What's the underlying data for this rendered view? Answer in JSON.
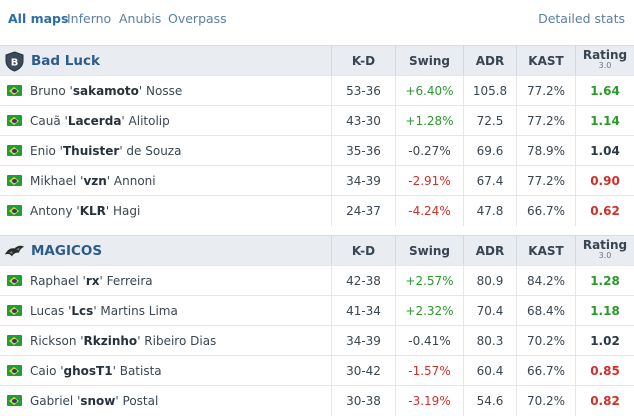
{
  "tabs": {
    "items": [
      {
        "label": "All maps",
        "active": true
      },
      {
        "label": "Inferno",
        "active": false
      },
      {
        "label": "Anubis",
        "active": false
      },
      {
        "label": "Overpass",
        "active": false
      }
    ],
    "detailed_stats": "Detailed stats"
  },
  "columns": {
    "kd": "K-D",
    "swing": "Swing",
    "adr": "ADR",
    "kast": "KAST",
    "rating": "Rating",
    "rating_version": "3.0"
  },
  "teams": [
    {
      "name": "Bad Luck",
      "logo_icon": "shield-b-icon",
      "players": [
        {
          "first": "Bruno '",
          "nick": "sakamoto",
          "last": "' Nosse",
          "kd": "53-36",
          "swing": "+6.40%",
          "adr": "105.8",
          "kast": "77.2%",
          "rating": "1.64"
        },
        {
          "first": "Cauã '",
          "nick": "Lacerda",
          "last": "' Alitolip",
          "kd": "43-30",
          "swing": "+1.28%",
          "adr": "72.5",
          "kast": "77.2%",
          "rating": "1.14"
        },
        {
          "first": "Enio '",
          "nick": "Thuister",
          "last": "' de Souza",
          "kd": "35-36",
          "swing": "-0.27%",
          "adr": "69.6",
          "kast": "78.9%",
          "rating": "1.04"
        },
        {
          "first": "Mikhael '",
          "nick": "vzn",
          "last": "' Annoni",
          "kd": "34-39",
          "swing": "-2.91%",
          "adr": "67.4",
          "kast": "77.2%",
          "rating": "0.90"
        },
        {
          "first": "Antony '",
          "nick": "KLR",
          "last": "' Hagi",
          "kd": "24-37",
          "swing": "-4.24%",
          "adr": "47.8",
          "kast": "66.7%",
          "rating": "0.62"
        }
      ]
    },
    {
      "name": "MAGICOS",
      "logo_icon": "magicos-logo-icon",
      "players": [
        {
          "first": "Raphael '",
          "nick": "rx",
          "last": "' Ferreira",
          "kd": "42-38",
          "swing": "+2.57%",
          "adr": "80.9",
          "kast": "84.2%",
          "rating": "1.28"
        },
        {
          "first": "Lucas '",
          "nick": "Lcs",
          "last": "' Martins Lima",
          "kd": "41-34",
          "swing": "+2.32%",
          "adr": "70.4",
          "kast": "68.4%",
          "rating": "1.18"
        },
        {
          "first": "Rickson '",
          "nick": "Rkzinho",
          "last": "' Ribeiro Dias",
          "kd": "34-39",
          "swing": "-0.41%",
          "adr": "80.3",
          "kast": "70.2%",
          "rating": "1.02"
        },
        {
          "first": "Caio '",
          "nick": "ghosT1",
          "last": "' Batista",
          "kd": "30-42",
          "swing": "-1.57%",
          "adr": "60.4",
          "kast": "66.7%",
          "rating": "0.85"
        },
        {
          "first": "Gabriel '",
          "nick": "snow",
          "last": "' Postal",
          "kd": "30-38",
          "swing": "-3.19%",
          "adr": "54.6",
          "kast": "70.2%",
          "rating": "0.82"
        }
      ]
    }
  ],
  "colors": {
    "positive": "#2b9a2b",
    "negative": "#d0302a",
    "neutral": "#2d3844",
    "link": "#2b6ea5"
  }
}
